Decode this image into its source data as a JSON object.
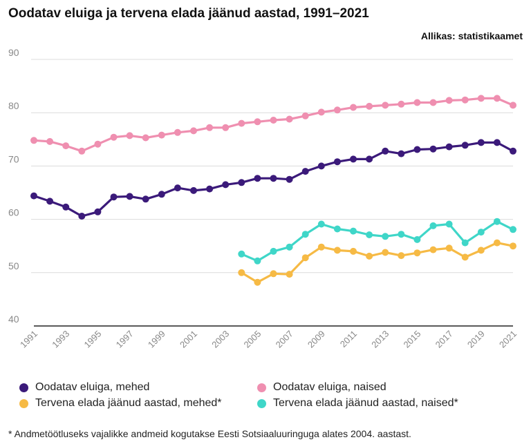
{
  "title": "Oodatav eluiga ja tervena elada jäänud aastad, 1991–2021",
  "source": "Allikas: statistikaamet",
  "footnote": "* Andmetöötluseks vajalikke andmeid kogutakse Eesti Sotsiaaluuringuga alates 2004. aastast.",
  "colors": {
    "life_men": "#3b1a7a",
    "life_women": "#ef8fb0",
    "healthy_men": "#f6ba45",
    "healthy_women": "#3fd6c8",
    "grid": "#dcdcdc",
    "axis": "#222222",
    "tick_text": "#888888"
  },
  "legend": [
    {
      "label": "Oodatav eluiga, mehed",
      "color": "#3b1a7a"
    },
    {
      "label": "Oodatav eluiga, naised",
      "color": "#ef8fb0"
    },
    {
      "label": "Tervena elada jäänud aastad, mehed*",
      "color": "#f6ba45"
    },
    {
      "label": "Tervena elada jäänud aastad, naised*",
      "color": "#3fd6c8"
    }
  ],
  "chart_data": {
    "type": "line",
    "title": "Oodatav eluiga ja tervena elada jäänud aastad, 1991–2021",
    "xlabel": "",
    "ylabel": "",
    "ylim": [
      40,
      90
    ],
    "yticks": [
      40,
      50,
      60,
      70,
      80,
      90
    ],
    "grid": true,
    "x": [
      1991,
      1992,
      1993,
      1994,
      1995,
      1996,
      1997,
      1998,
      1999,
      2000,
      2001,
      2002,
      2003,
      2004,
      2005,
      2006,
      2007,
      2008,
      2009,
      2010,
      2011,
      2012,
      2013,
      2014,
      2015,
      2016,
      2017,
      2018,
      2019,
      2020,
      2021
    ],
    "xtick_labels": [
      "1991",
      "1993",
      "1995",
      "1997",
      "1999",
      "2001",
      "2003",
      "2005",
      "2007",
      "2009",
      "2011",
      "2013",
      "2015",
      "2017",
      "2019",
      "2021"
    ],
    "series": [
      {
        "name": "Oodatav eluiga, mehed",
        "color": "#3b1a7a",
        "values": [
          64.4,
          63.4,
          62.3,
          60.6,
          61.4,
          64.2,
          64.3,
          63.8,
          64.7,
          65.9,
          65.4,
          65.7,
          66.5,
          66.9,
          67.7,
          67.7,
          67.5,
          69.0,
          70.0,
          70.8,
          71.3,
          71.3,
          72.8,
          72.3,
          73.1,
          73.2,
          73.6,
          73.9,
          74.4,
          74.4,
          72.8
        ]
      },
      {
        "name": "Oodatav eluiga, naised",
        "color": "#ef8fb0",
        "values": [
          74.8,
          74.6,
          73.8,
          72.8,
          74.1,
          75.4,
          75.7,
          75.3,
          75.8,
          76.3,
          76.6,
          77.2,
          77.2,
          78.0,
          78.3,
          78.6,
          78.8,
          79.4,
          80.1,
          80.5,
          81.0,
          81.2,
          81.4,
          81.6,
          81.9,
          81.9,
          82.3,
          82.4,
          82.7,
          82.7,
          81.4
        ]
      },
      {
        "name": "Tervena elada jäänud aastad, mehed*",
        "color": "#f6ba45",
        "values": [
          null,
          null,
          null,
          null,
          null,
          null,
          null,
          null,
          null,
          null,
          null,
          null,
          null,
          50.0,
          48.2,
          49.8,
          49.7,
          52.8,
          54.8,
          54.2,
          54.0,
          53.1,
          53.8,
          53.2,
          53.7,
          54.3,
          54.6,
          52.9,
          54.2,
          55.6,
          55.0
        ]
      },
      {
        "name": "Tervena elada jäänud aastad, naised*",
        "color": "#3fd6c8",
        "values": [
          null,
          null,
          null,
          null,
          null,
          null,
          null,
          null,
          null,
          null,
          null,
          null,
          null,
          53.5,
          52.2,
          54.0,
          54.8,
          57.2,
          59.1,
          58.2,
          57.8,
          57.1,
          56.8,
          57.2,
          56.2,
          58.8,
          59.1,
          55.6,
          57.6,
          59.6,
          58.1
        ]
      }
    ]
  }
}
